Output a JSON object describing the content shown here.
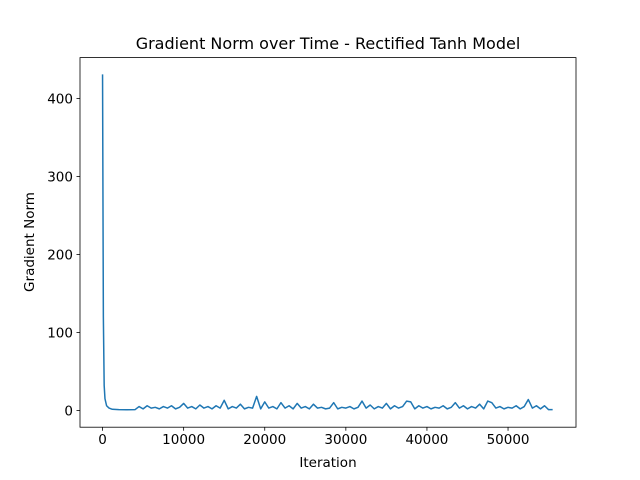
{
  "chart_data": {
    "type": "line",
    "title": "Gradient Norm over Time - Rectified Tanh Model",
    "x_label": "Iteration",
    "y_label": "Gradient Norm",
    "xlim": [
      -2780,
      58380
    ],
    "ylim": [
      -21.5,
      452.5
    ],
    "xticks": [
      0,
      10000,
      20000,
      30000,
      40000,
      50000
    ],
    "yticks": [
      0,
      100,
      200,
      300,
      400
    ],
    "series": [
      {
        "color": "#1f77b4",
        "x": [
          0,
          100,
          200,
          300,
          500,
          800,
          1200,
          2000,
          3000,
          4000,
          4500,
          5000,
          5500,
          6000,
          6500,
          7000,
          7500,
          8000,
          8500,
          9000,
          9500,
          10000,
          10500,
          11000,
          11500,
          12000,
          12500,
          13000,
          13500,
          14000,
          14500,
          15000,
          15500,
          16000,
          16500,
          17000,
          17500,
          18000,
          18500,
          19000,
          19500,
          20000,
          20500,
          21000,
          21500,
          22000,
          22500,
          23000,
          23500,
          24000,
          24500,
          25000,
          25500,
          26000,
          26500,
          27000,
          27500,
          28000,
          28500,
          29000,
          29500,
          30000,
          30500,
          31000,
          31500,
          32000,
          32500,
          33000,
          33500,
          34000,
          34500,
          35000,
          35500,
          36000,
          36500,
          37000,
          37500,
          38000,
          38500,
          39000,
          39500,
          40000,
          40500,
          41000,
          41500,
          42000,
          42500,
          43000,
          43500,
          44000,
          44500,
          45000,
          45500,
          46000,
          46500,
          47000,
          47500,
          48000,
          48500,
          49000,
          49500,
          50000,
          50500,
          51000,
          51500,
          52000,
          52500,
          53000,
          53500,
          54000,
          54500,
          55000,
          55500
        ],
        "values": [
          431,
          120,
          32,
          15,
          6,
          3,
          1.5,
          1,
          0.8,
          1,
          5,
          2,
          6,
          3,
          4,
          2,
          5,
          3,
          6,
          2,
          4,
          9,
          3,
          5,
          2,
          7,
          3,
          5,
          2,
          6,
          3,
          13,
          2,
          5,
          3,
          8,
          2,
          4,
          3,
          18,
          2,
          11,
          3,
          5,
          2,
          10,
          3,
          6,
          2,
          9,
          3,
          5,
          2,
          8,
          3,
          4,
          2,
          3,
          10,
          2,
          4,
          3,
          5,
          2,
          4,
          12,
          3,
          7,
          2,
          5,
          3,
          9,
          2,
          6,
          3,
          5,
          12,
          11,
          2,
          6,
          3,
          5,
          2,
          4,
          3,
          6,
          2,
          4,
          10,
          3,
          6,
          2,
          5,
          3,
          8,
          2,
          12,
          10,
          3,
          5,
          2,
          4,
          3,
          6,
          2,
          5,
          14,
          3,
          6,
          2,
          6,
          1,
          1
        ]
      }
    ]
  }
}
